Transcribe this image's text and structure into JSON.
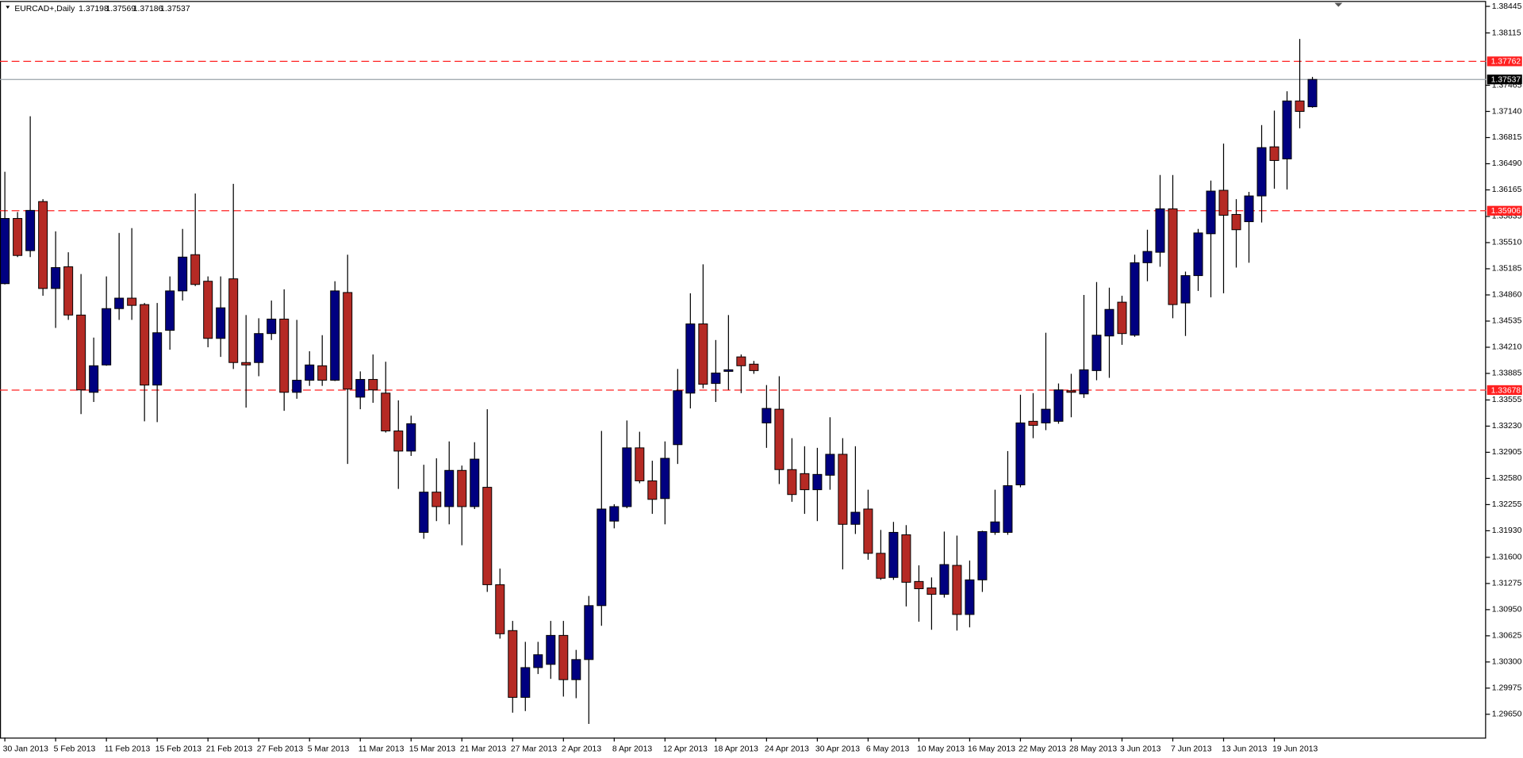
{
  "chart_data": {
    "type": "candlestick",
    "title": "EURCAD+,Daily",
    "up_color": "#000080",
    "down_color": "#b52a24",
    "level_color": "#ff2020",
    "ylim": [
      1.2936,
      1.385
    ],
    "yticks": [
      1.38445,
      1.38115,
      1.37465,
      {
        "value": 1.3714,
        "label": "1.37140"
      },
      1.36815,
      {
        "value": 1.3649,
        "label": "1.36490"
      },
      1.36165,
      1.35835,
      {
        "value": 1.3551,
        "label": "1.35510"
      },
      1.35185,
      {
        "value": 1.3486,
        "label": "1.34860"
      },
      1.34535,
      {
        "value": 1.3421,
        "label": "1.34210"
      },
      1.33885,
      1.33555,
      {
        "value": 1.3323,
        "label": "1.33230"
      },
      1.32905,
      {
        "value": 1.3258,
        "label": "1.32580"
      },
      1.32255,
      {
        "value": 1.3193,
        "label": "1.31930"
      },
      {
        "value": 1.316,
        "label": "1.31600"
      },
      1.31275,
      {
        "value": 1.3095,
        "label": "1.30950"
      },
      1.30625,
      {
        "value": 1.303,
        "label": "1.30300"
      },
      1.29975,
      {
        "value": 1.2965,
        "label": "1.29650"
      }
    ],
    "levels": [
      1.37762,
      1.35906,
      1.33678
    ],
    "categories": [
      "30 Jan 2013",
      null,
      null,
      null,
      "5 Feb 2013",
      null,
      null,
      null,
      "11 Feb 2013",
      null,
      null,
      null,
      "15 Feb 2013",
      null,
      null,
      null,
      "21 Feb 2013",
      null,
      null,
      null,
      "27 Feb 2013",
      null,
      null,
      null,
      "5 Mar 2013",
      null,
      null,
      null,
      "11 Mar 2013",
      null,
      null,
      null,
      "15 Mar 2013",
      null,
      null,
      null,
      "21 Mar 2013",
      null,
      null,
      null,
      "27 Mar 2013",
      null,
      null,
      null,
      "2 Apr 2013",
      null,
      null,
      null,
      "8 Apr 2013",
      null,
      null,
      null,
      "12 Apr 2013",
      null,
      null,
      null,
      "18 Apr 2013",
      null,
      null,
      null,
      "24 Apr 2013",
      null,
      null,
      null,
      "30 Apr 2013",
      null,
      null,
      null,
      "6 May 2013",
      null,
      null,
      null,
      "10 May 2013",
      null,
      null,
      null,
      "16 May 2013",
      null,
      null,
      null,
      "22 May 2013",
      null,
      null,
      null,
      "28 May 2013",
      null,
      null,
      null,
      "3 Jun 2013",
      null,
      null,
      null,
      "7 Jun 2013",
      null,
      null,
      null,
      "13 Jun 2013",
      null,
      null,
      null,
      "19 Jun 2013",
      null,
      null,
      null
    ],
    "open": [
      1.35,
      1.3581,
      1.3541,
      1.3602,
      1.3494,
      1.3521,
      1.3461,
      1.3365,
      1.3399,
      1.3469,
      1.3482,
      1.3474,
      1.3374,
      1.3442,
      1.3491,
      1.3536,
      1.3503,
      1.3432,
      1.3506,
      1.3402,
      1.3402,
      1.3438,
      1.3456,
      1.3365,
      1.338,
      1.3398,
      1.338,
      1.3489,
      1.3359,
      1.3381,
      1.3364,
      1.3317,
      1.3292,
      1.3191,
      1.3241,
      1.3223,
      1.3268,
      1.3223,
      1.3247,
      1.3126,
      1.3069,
      1.2986,
      1.3023,
      1.3027,
      1.3063,
      1.3008,
      1.3033,
      1.31,
      1.3205,
      1.3223,
      1.3296,
      1.3255,
      1.3233,
      1.33,
      1.3364,
      1.345,
      1.3376,
      1.3391,
      1.3409,
      1.34,
      1.3327,
      1.3344,
      1.3269,
      1.3264,
      1.3244,
      1.3262,
      1.3288,
      1.3201,
      1.322,
      1.3165,
      1.3135,
      1.3188,
      1.313,
      1.3122,
      1.3114,
      1.315,
      1.3089,
      1.3132,
      1.3191,
      1.3191,
      1.325,
      1.3329,
      1.3327,
      1.3329,
      1.3367,
      1.3363,
      1.3392,
      1.3435,
      1.3477,
      1.3436,
      1.3526,
      1.3539,
      1.3593,
      1.3476,
      1.351,
      1.3562,
      1.3616,
      1.3586,
      1.3577,
      1.3609,
      1.367,
      1.3655,
      1.3727,
      1.37198
    ],
    "high": [
      1.3639,
      1.3589,
      1.3708,
      1.3605,
      1.3565,
      1.3539,
      1.3512,
      1.3433,
      1.3509,
      1.3563,
      1.3569,
      1.3476,
      1.3476,
      1.3509,
      1.3568,
      1.3612,
      1.3509,
      1.3509,
      1.3624,
      1.3461,
      1.3457,
      1.3479,
      1.3493,
      1.3455,
      1.3416,
      1.3436,
      1.3503,
      1.3536,
      1.3391,
      1.3412,
      1.3403,
      1.3355,
      1.3336,
      1.3275,
      1.3283,
      1.3304,
      1.3274,
      1.3303,
      1.3344,
      1.3146,
      1.3081,
      1.3055,
      1.3055,
      1.3081,
      1.3081,
      1.3045,
      1.3112,
      1.3317,
      1.3226,
      1.333,
      1.3316,
      1.328,
      1.3304,
      1.3394,
      1.3488,
      1.3524,
      1.343,
      1.3461,
      1.3412,
      1.3404,
      1.3374,
      1.3385,
      1.3308,
      1.3298,
      1.3296,
      1.3334,
      1.3308,
      1.3298,
      1.3244,
      1.3194,
      1.3204,
      1.32,
      1.315,
      1.3135,
      1.3192,
      1.3187,
      1.3156,
      1.3193,
      1.3244,
      1.3292,
      1.3362,
      1.3364,
      1.3439,
      1.3376,
      1.3388,
      1.3486,
      1.3502,
      1.3495,
      1.3485,
      1.3536,
      1.3567,
      1.3635,
      1.3635,
      1.3515,
      1.3568,
      1.3628,
      1.3674,
      1.3605,
      1.3614,
      1.3697,
      1.3715,
      1.3739,
      1.3804,
      1.37569
    ],
    "low": [
      1.3499,
      1.3533,
      1.3533,
      1.3485,
      1.3445,
      1.3455,
      1.3338,
      1.3353,
      1.3398,
      1.3455,
      1.3455,
      1.3329,
      1.3328,
      1.3418,
      1.3479,
      1.3497,
      1.3421,
      1.3409,
      1.3394,
      1.3346,
      1.3385,
      1.343,
      1.3342,
      1.3357,
      1.3373,
      1.3373,
      1.3379,
      1.3276,
      1.3344,
      1.3352,
      1.3315,
      1.3245,
      1.3286,
      1.3183,
      1.3205,
      1.3201,
      1.3175,
      1.322,
      1.3117,
      1.3059,
      1.2967,
      1.2969,
      1.3015,
      1.3009,
      1.2987,
      1.2985,
      1.2953,
      1.3075,
      1.3196,
      1.3221,
      1.3252,
      1.3214,
      1.3201,
      1.3276,
      1.3345,
      1.337,
      1.3353,
      1.3368,
      1.3364,
      1.3388,
      1.3296,
      1.3251,
      1.3229,
      1.3214,
      1.3205,
      1.3244,
      1.3145,
      1.3189,
      1.3157,
      1.3132,
      1.3132,
      1.3099,
      1.308,
      1.307,
      1.311,
      1.3069,
      1.3073,
      1.3117,
      1.3188,
      1.3188,
      1.3247,
      1.3308,
      1.3318,
      1.3326,
      1.3334,
      1.3358,
      1.338,
      1.3383,
      1.3424,
      1.3434,
      1.3503,
      1.3521,
      1.3457,
      1.3435,
      1.3491,
      1.3483,
      1.3488,
      1.352,
      1.3526,
      1.3576,
      1.3618,
      1.3617,
      1.3693,
      1.37186
    ],
    "close": [
      1.3581,
      1.3535,
      1.3591,
      1.3494,
      1.352,
      1.3461,
      1.3368,
      1.3398,
      1.3469,
      1.3482,
      1.3473,
      1.3374,
      1.3439,
      1.3491,
      1.3533,
      1.3499,
      1.3432,
      1.347,
      1.3402,
      1.3399,
      1.3438,
      1.3456,
      1.3365,
      1.338,
      1.3399,
      1.338,
      1.3491,
      1.3369,
      1.3381,
      1.3368,
      1.3317,
      1.3292,
      1.3326,
      1.3241,
      1.3223,
      1.3268,
      1.3223,
      1.3282,
      1.3126,
      1.3065,
      1.2986,
      1.3023,
      1.3039,
      1.3063,
      1.3008,
      1.3033,
      1.31,
      1.322,
      1.3223,
      1.3296,
      1.3255,
      1.3232,
      1.3283,
      1.3367,
      1.345,
      1.3375,
      1.3389,
      1.3393,
      1.3398,
      1.3392,
      1.3345,
      1.3269,
      1.3238,
      1.3244,
      1.3263,
      1.3288,
      1.3201,
      1.3216,
      1.3165,
      1.3134,
      1.3191,
      1.3129,
      1.3121,
      1.3114,
      1.3151,
      1.3089,
      1.3132,
      1.3192,
      1.3204,
      1.3249,
      1.3327,
      1.3324,
      1.3344,
      1.3368,
      1.3365,
      1.3393,
      1.3436,
      1.3468,
      1.3438,
      1.3526,
      1.354,
      1.3593,
      1.3474,
      1.351,
      1.3563,
      1.3615,
      1.3585,
      1.3567,
      1.3609,
      1.3669,
      1.3653,
      1.3727,
      1.3714,
      1.37537
    ]
  }
}
